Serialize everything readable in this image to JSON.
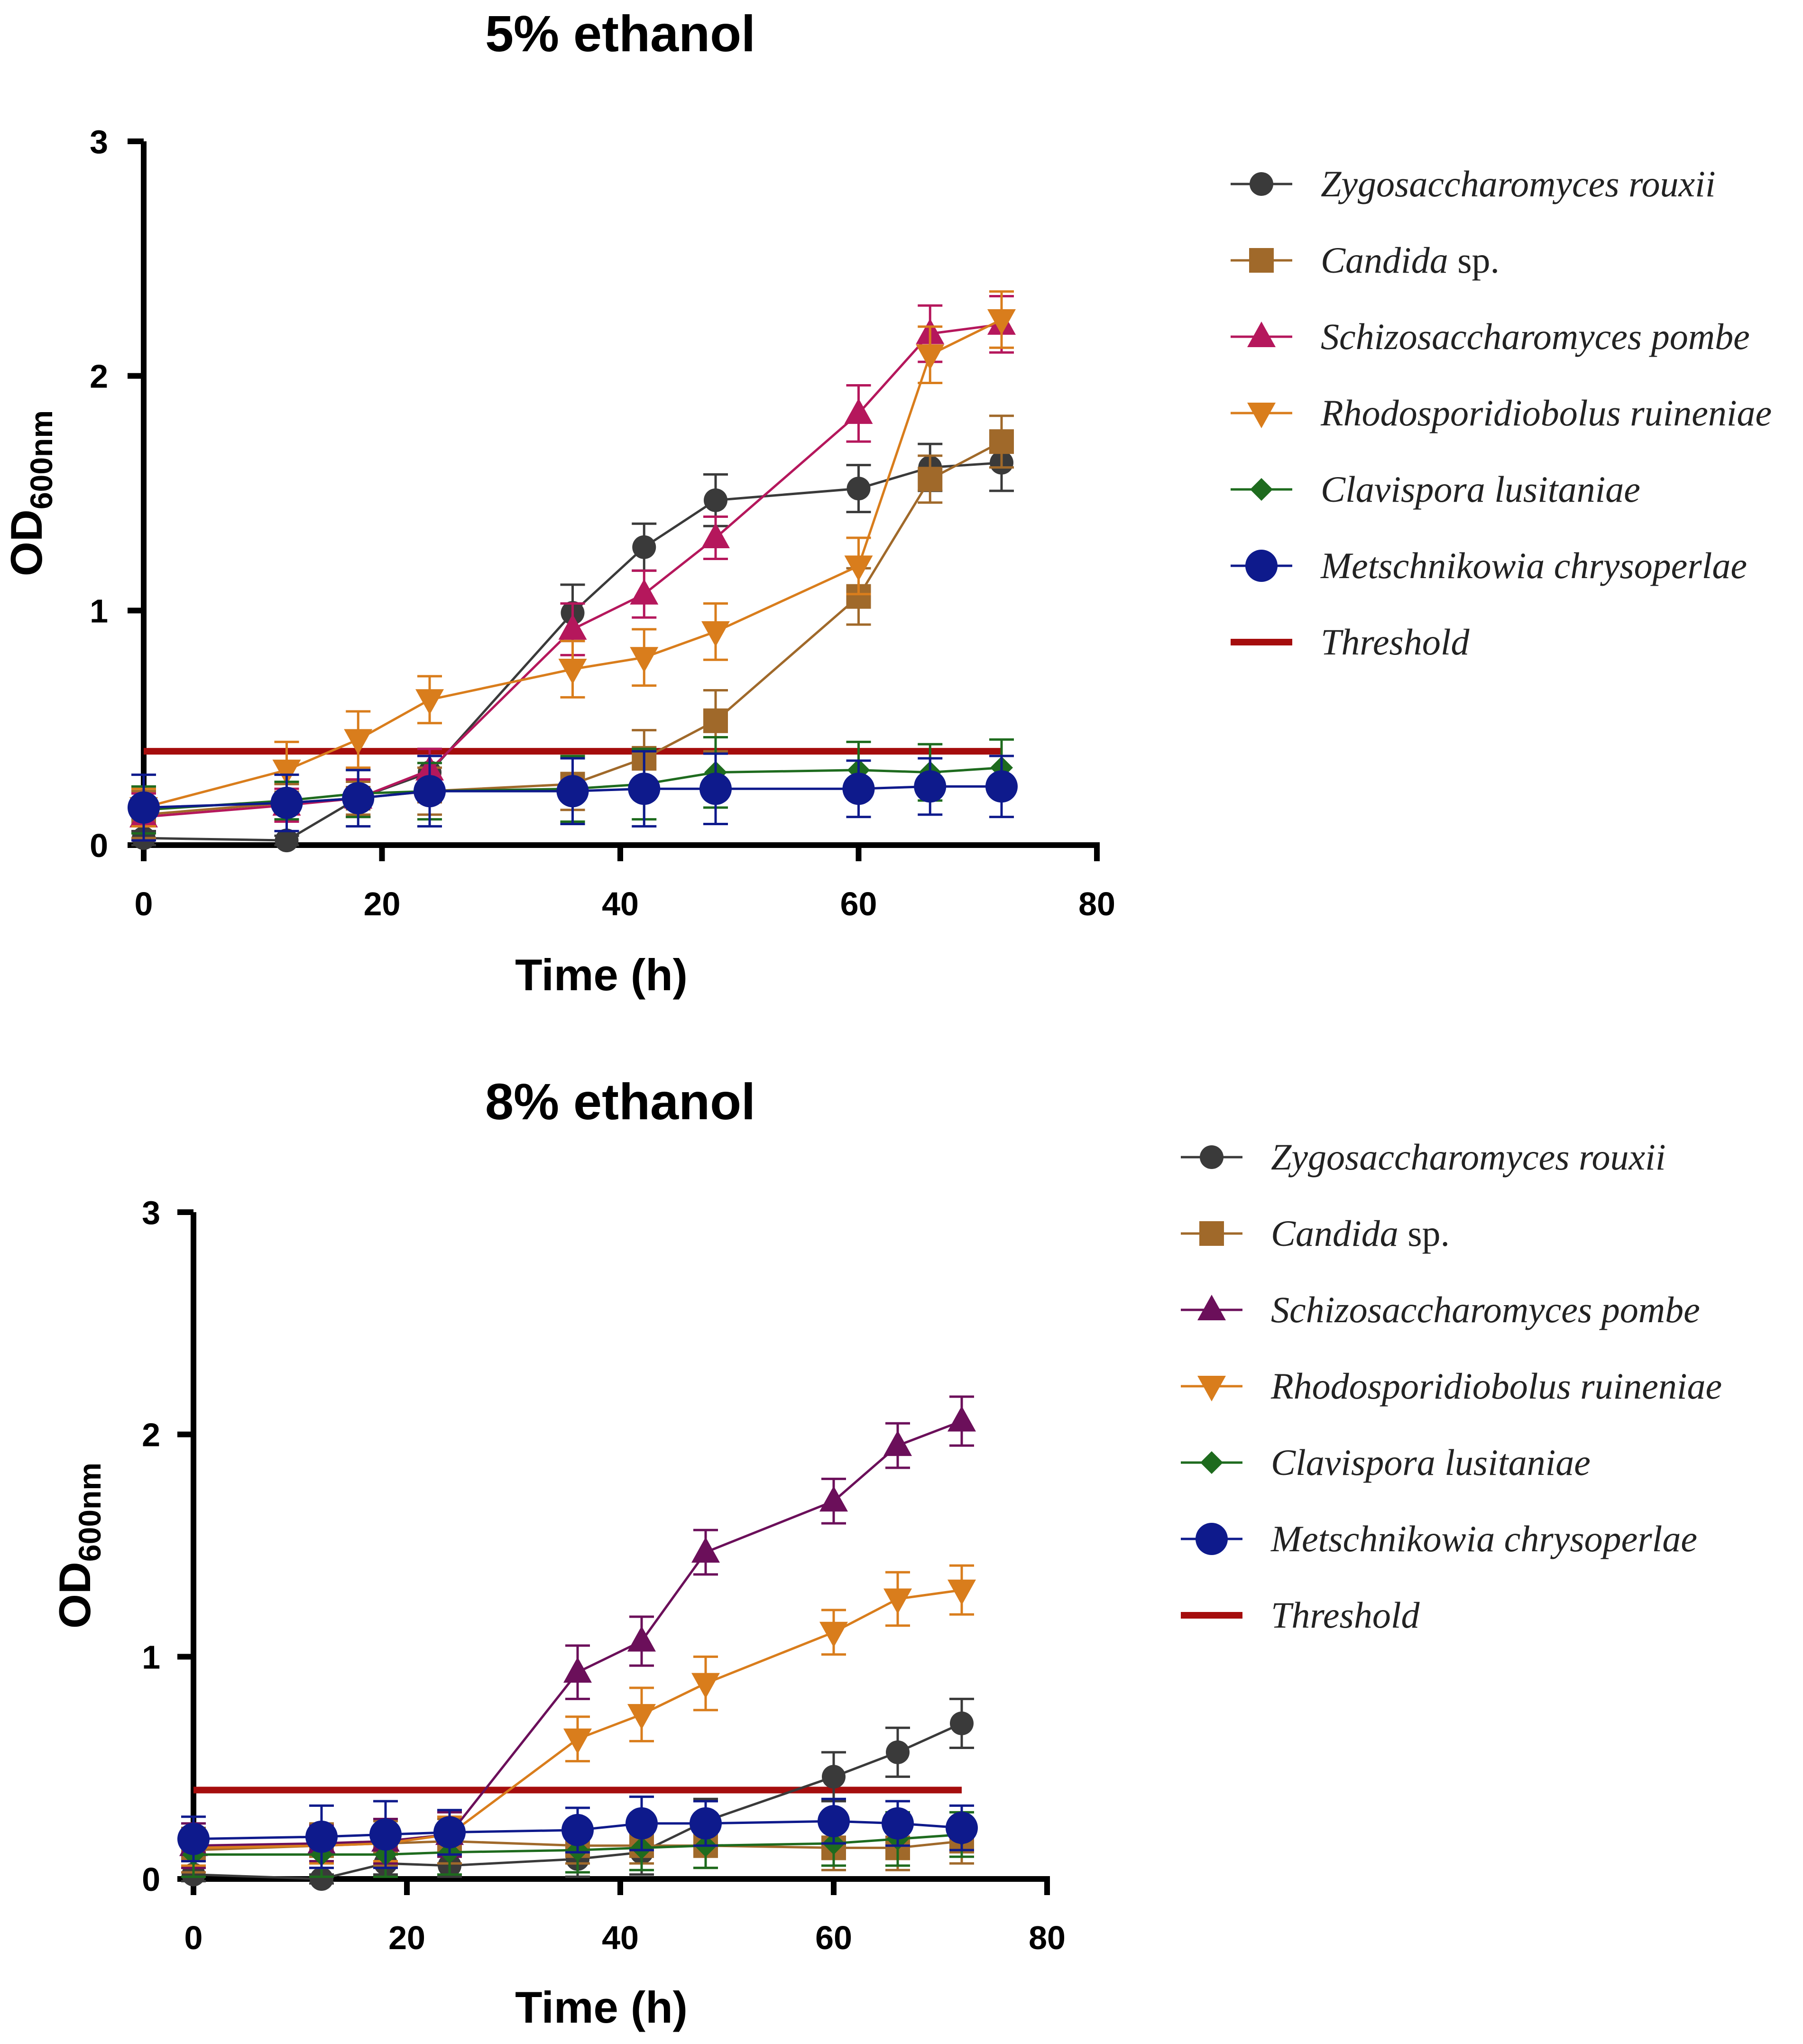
{
  "chart_data": [
    {
      "type": "line",
      "title": "5% ethanol",
      "xlabel": "Time (h)",
      "ylabel_main": "OD",
      "ylabel_sub": "600nm",
      "xlim": [
        0,
        80
      ],
      "ylim": [
        0,
        3
      ],
      "xticks": [
        0,
        20,
        40,
        60,
        80
      ],
      "yticks": [
        0,
        1,
        2,
        3
      ],
      "threshold": {
        "name": "Threshold",
        "value": 0.4,
        "x": [
          0,
          72
        ],
        "color": "#a50d0d"
      },
      "series": [
        {
          "name": "Zygosaccharomyces rouxii",
          "italic": "Zygosaccharomyces rouxii",
          "upright": "",
          "marker": "circle",
          "color": "#3a3a3a",
          "x": [
            0,
            12,
            18,
            24,
            36,
            42,
            48,
            60,
            66,
            72
          ],
          "y": [
            0.03,
            0.02,
            0.2,
            0.31,
            0.99,
            1.27,
            1.47,
            1.52,
            1.61,
            1.63
          ],
          "err": [
            0.03,
            0.02,
            0.08,
            0.1,
            0.12,
            0.1,
            0.11,
            0.1,
            0.1,
            0.12
          ]
        },
        {
          "name": "Candida sp.",
          "italic": "Candida",
          "upright": " sp.",
          "marker": "square",
          "color": "#a0692a",
          "x": [
            0,
            12,
            18,
            24,
            36,
            42,
            48,
            60,
            66,
            72
          ],
          "y": [
            0.13,
            0.18,
            0.2,
            0.23,
            0.26,
            0.37,
            0.53,
            1.06,
            1.56,
            1.72
          ],
          "err": [
            0.1,
            0.08,
            0.07,
            0.1,
            0.11,
            0.12,
            0.13,
            0.12,
            0.1,
            0.11
          ]
        },
        {
          "name": "Schizosaccharomyces pombe",
          "italic": "Schizosaccharomyces pombe",
          "upright": "",
          "marker": "triangle-up",
          "color": "#b5175c",
          "x": [
            0,
            12,
            18,
            24,
            36,
            42,
            48,
            60,
            66,
            72
          ],
          "y": [
            0.12,
            0.17,
            0.2,
            0.32,
            0.92,
            1.07,
            1.31,
            1.84,
            2.18,
            2.22
          ],
          "err": [
            0.1,
            0.07,
            0.08,
            0.09,
            0.11,
            0.1,
            0.09,
            0.12,
            0.12,
            0.12
          ]
        },
        {
          "name": "Rhodosporidiobolus ruineniae",
          "italic": "Rhodosporidiobolus ruineniae",
          "upright": "",
          "marker": "triangle-down",
          "color": "#d97d1c",
          "x": [
            0,
            12,
            18,
            24,
            36,
            42,
            48,
            60,
            66,
            72
          ],
          "y": [
            0.16,
            0.32,
            0.45,
            0.62,
            0.75,
            0.8,
            0.91,
            1.19,
            2.09,
            2.24
          ],
          "err": [
            0.08,
            0.12,
            0.12,
            0.1,
            0.12,
            0.12,
            0.12,
            0.12,
            0.12,
            0.12
          ]
        },
        {
          "name": "Clavispora lusitaniae",
          "italic": "Clavispora lusitaniae",
          "upright": "",
          "marker": "diamond",
          "color": "#1e6b1e",
          "x": [
            0,
            12,
            18,
            24,
            36,
            42,
            48,
            60,
            66,
            72
          ],
          "y": [
            0.15,
            0.19,
            0.22,
            0.23,
            0.24,
            0.26,
            0.31,
            0.32,
            0.31,
            0.33
          ],
          "err": [
            0.1,
            0.08,
            0.1,
            0.12,
            0.14,
            0.15,
            0.15,
            0.12,
            0.12,
            0.12
          ]
        },
        {
          "name": "Metschnikowia chrysoperlae",
          "italic": "Metschnikowia chrysoperlae",
          "upright": "",
          "marker": "big-circle",
          "color": "#0e1a8c",
          "x": [
            0,
            12,
            18,
            24,
            36,
            42,
            48,
            60,
            66,
            72
          ],
          "y": [
            0.16,
            0.18,
            0.2,
            0.23,
            0.23,
            0.24,
            0.24,
            0.24,
            0.25,
            0.25
          ],
          "err": [
            0.14,
            0.12,
            0.12,
            0.15,
            0.14,
            0.16,
            0.15,
            0.12,
            0.12,
            0.13
          ]
        }
      ]
    },
    {
      "type": "line",
      "title": "8% ethanol",
      "xlabel": "Time (h)",
      "ylabel_main": "OD",
      "ylabel_sub": "600nm",
      "xlim": [
        0,
        80
      ],
      "ylim": [
        0,
        3
      ],
      "xticks": [
        0,
        20,
        40,
        60,
        80
      ],
      "yticks": [
        0,
        1,
        2,
        3
      ],
      "threshold": {
        "name": "Threshold",
        "value": 0.4,
        "x": [
          0,
          72
        ],
        "color": "#a50d0d"
      },
      "series": [
        {
          "name": "Zygosaccharomyces rouxii",
          "italic": "Zygosaccharomyces rouxii",
          "upright": "",
          "marker": "circle",
          "color": "#3a3a3a",
          "x": [
            0,
            12,
            18,
            24,
            36,
            42,
            48,
            60,
            66,
            72
          ],
          "y": [
            0.02,
            0.0,
            0.07,
            0.06,
            0.09,
            0.12,
            0.26,
            0.46,
            0.57,
            0.7
          ],
          "err": [
            0.03,
            0.02,
            0.05,
            0.05,
            0.08,
            0.1,
            0.1,
            0.11,
            0.11,
            0.11
          ]
        },
        {
          "name": "Candida sp.",
          "italic": "Candida",
          "upright": " sp.",
          "marker": "square",
          "color": "#a0692a",
          "x": [
            0,
            12,
            18,
            24,
            36,
            42,
            48,
            60,
            66,
            72
          ],
          "y": [
            0.13,
            0.15,
            0.16,
            0.17,
            0.15,
            0.15,
            0.15,
            0.14,
            0.14,
            0.17
          ],
          "err": [
            0.1,
            0.1,
            0.1,
            0.1,
            0.08,
            0.08,
            0.1,
            0.1,
            0.1,
            0.1
          ]
        },
        {
          "name": "Schizosaccharomyces pombe",
          "italic": "Schizosaccharomyces pombe",
          "upright": "",
          "marker": "triangle-up",
          "color": "#6b0f5a",
          "x": [
            0,
            12,
            18,
            24,
            36,
            42,
            48,
            60,
            66,
            72
          ],
          "y": [
            0.15,
            0.16,
            0.17,
            0.2,
            0.93,
            1.07,
            1.47,
            1.7,
            1.95,
            2.06
          ],
          "err": [
            0.1,
            0.08,
            0.1,
            0.1,
            0.12,
            0.11,
            0.1,
            0.1,
            0.1,
            0.11
          ]
        },
        {
          "name": "Rhodosporidiobolus ruineniae",
          "italic": "Rhodosporidiobolus ruineniae",
          "upright": "",
          "marker": "triangle-down",
          "color": "#d97d1c",
          "x": [
            0,
            12,
            18,
            24,
            36,
            42,
            48,
            60,
            66,
            72
          ],
          "y": [
            0.14,
            0.15,
            0.16,
            0.2,
            0.63,
            0.74,
            0.88,
            1.11,
            1.26,
            1.3
          ],
          "err": [
            0.08,
            0.08,
            0.08,
            0.08,
            0.1,
            0.12,
            0.12,
            0.1,
            0.12,
            0.11
          ]
        },
        {
          "name": "Clavispora lusitaniae",
          "italic": "Clavispora lusitaniae",
          "upright": "",
          "marker": "diamond",
          "color": "#1e6b1e",
          "x": [
            0,
            12,
            18,
            24,
            36,
            42,
            48,
            60,
            66,
            72
          ],
          "y": [
            0.11,
            0.11,
            0.11,
            0.12,
            0.13,
            0.14,
            0.15,
            0.16,
            0.18,
            0.2
          ],
          "err": [
            0.1,
            0.1,
            0.1,
            0.1,
            0.1,
            0.1,
            0.1,
            0.1,
            0.12,
            0.1
          ]
        },
        {
          "name": "Metschnikowia chrysoperlae",
          "italic": "Metschnikowia chrysoperlae",
          "upright": "",
          "marker": "big-circle",
          "color": "#0e1a8c",
          "x": [
            0,
            12,
            18,
            24,
            36,
            42,
            48,
            60,
            66,
            72
          ],
          "y": [
            0.18,
            0.19,
            0.2,
            0.21,
            0.22,
            0.25,
            0.25,
            0.26,
            0.25,
            0.23
          ],
          "err": [
            0.1,
            0.14,
            0.15,
            0.1,
            0.1,
            0.12,
            0.1,
            0.1,
            0.1,
            0.1
          ]
        }
      ]
    }
  ]
}
